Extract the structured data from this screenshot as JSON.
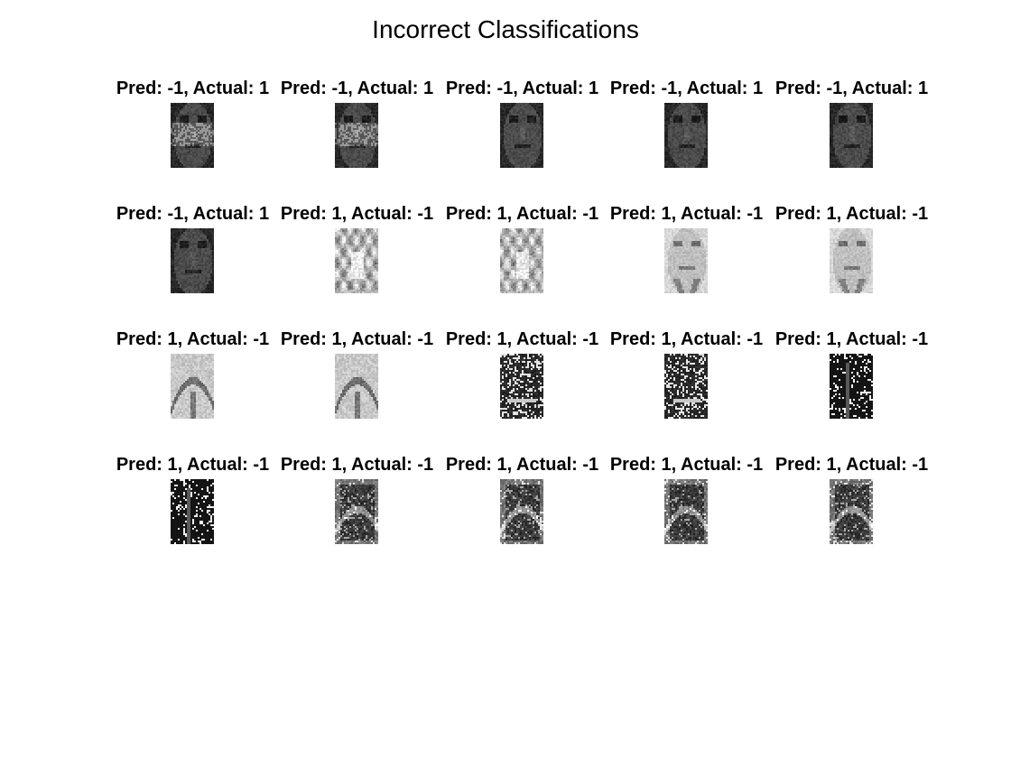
{
  "figure": {
    "title": "Incorrect Classifications"
  },
  "panels": [
    {
      "title": "Pred: -1, Actual: 1",
      "image": "face-dark-mottled"
    },
    {
      "title": "Pred: -1, Actual: 1",
      "image": "face-dark-mottled"
    },
    {
      "title": "Pred: -1, Actual: 1",
      "image": "face-dark"
    },
    {
      "title": "Pred: -1, Actual: 1",
      "image": "face-dark"
    },
    {
      "title": "Pred: -1, Actual: 1",
      "image": "face-dark"
    },
    {
      "title": "Pred: -1, Actual: 1",
      "image": "face-dark"
    },
    {
      "title": "Pred: 1, Actual: -1",
      "image": "pattern-light-blotchy"
    },
    {
      "title": "Pred: 1, Actual: -1",
      "image": "pattern-light-blotchy"
    },
    {
      "title": "Pred: 1, Actual: -1",
      "image": "face-light"
    },
    {
      "title": "Pred: 1, Actual: -1",
      "image": "face-light"
    },
    {
      "title": "Pred: 1, Actual: -1",
      "image": "pattern-light-arch"
    },
    {
      "title": "Pred: 1, Actual: -1",
      "image": "pattern-light-arch"
    },
    {
      "title": "Pred: 1, Actual: -1",
      "image": "pattern-dark-speckle"
    },
    {
      "title": "Pred: 1, Actual: -1",
      "image": "pattern-dark-speckle"
    },
    {
      "title": "Pred: 1, Actual: -1",
      "image": "pattern-dark-sparse"
    },
    {
      "title": "Pred: 1, Actual: -1",
      "image": "pattern-dark-sparse"
    },
    {
      "title": "Pred: 1, Actual: -1",
      "image": "pattern-dark-noise"
    },
    {
      "title": "Pred: 1, Actual: -1",
      "image": "pattern-dark-noise"
    },
    {
      "title": "Pred: 1, Actual: -1",
      "image": "pattern-dark-noise"
    },
    {
      "title": "Pred: 1, Actual: -1",
      "image": "pattern-dark-noise"
    }
  ]
}
